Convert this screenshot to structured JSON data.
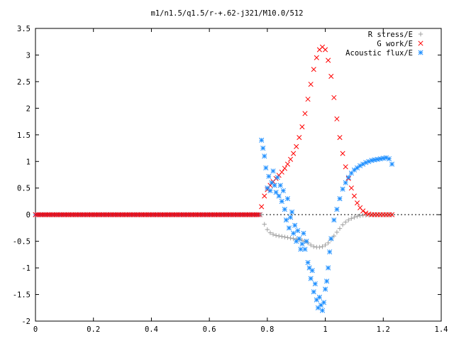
{
  "chart_data": {
    "type": "scatter",
    "title": "m1/n1.5/q1.5/r-+.62-j321/M10.0/512",
    "xlabel": "",
    "ylabel": "",
    "xlim": [
      0,
      1.4
    ],
    "ylim": [
      -2,
      3.5
    ],
    "xticks": [
      0,
      0.2,
      0.4,
      0.6,
      0.8,
      1,
      1.2,
      1.4
    ],
    "yticks": [
      -2,
      -1.5,
      -1,
      -0.5,
      0,
      0.5,
      1,
      1.5,
      2,
      2.5,
      3,
      3.5
    ],
    "legend_position": "top-right",
    "grid": false,
    "series": [
      {
        "name": "R stress/E",
        "marker": "plus",
        "color": "#a0a0a0",
        "x": [
          0.78,
          0.79,
          0.8,
          0.81,
          0.82,
          0.83,
          0.84,
          0.85,
          0.86,
          0.87,
          0.88,
          0.89,
          0.9,
          0.91,
          0.92,
          0.93,
          0.94,
          0.95,
          0.96,
          0.97,
          0.98,
          0.99,
          1,
          1.01,
          1.02,
          1.03,
          1.04,
          1.05,
          1.06,
          1.07,
          1.08,
          1.09,
          1.1,
          1.11,
          1.12,
          1.13,
          1.14,
          1.15,
          1.16,
          1.17,
          1.18,
          1.19,
          1.2,
          1.21,
          1.22,
          1.23
        ],
        "y": [
          0,
          -0.18,
          -0.28,
          -0.34,
          -0.37,
          -0.39,
          -0.4,
          -0.41,
          -0.42,
          -0.43,
          -0.44,
          -0.45,
          -0.46,
          -0.47,
          -0.48,
          -0.5,
          -0.53,
          -0.57,
          -0.6,
          -0.61,
          -0.61,
          -0.6,
          -0.57,
          -0.53,
          -0.47,
          -0.4,
          -0.33,
          -0.26,
          -0.19,
          -0.14,
          -0.1,
          -0.07,
          -0.05,
          -0.03,
          -0.02,
          -0.01,
          -0.01,
          -0.005,
          0,
          0,
          0,
          0,
          0,
          0,
          0,
          0
        ]
      },
      {
        "name": "G work/E",
        "marker": "cross",
        "color": "#ff0000",
        "x": [
          0.78,
          0.79,
          0.8,
          0.81,
          0.82,
          0.83,
          0.84,
          0.85,
          0.86,
          0.87,
          0.88,
          0.89,
          0.9,
          0.91,
          0.92,
          0.93,
          0.94,
          0.95,
          0.96,
          0.97,
          0.98,
          0.99,
          1,
          1.01,
          1.02,
          1.03,
          1.04,
          1.05,
          1.06,
          1.07,
          1.08,
          1.09,
          1.1,
          1.11,
          1.12,
          1.13,
          1.14,
          1.15,
          1.16,
          1.17,
          1.18,
          1.19,
          1.2,
          1.21,
          1.22,
          1.23
        ],
        "y": [
          0.15,
          0.35,
          0.47,
          0.55,
          0.62,
          0.68,
          0.74,
          0.8,
          0.87,
          0.95,
          1.04,
          1.15,
          1.28,
          1.45,
          1.65,
          1.9,
          2.17,
          2.45,
          2.73,
          2.95,
          3.1,
          3.15,
          3.1,
          2.9,
          2.6,
          2.2,
          1.8,
          1.45,
          1.15,
          0.9,
          0.68,
          0.5,
          0.35,
          0.22,
          0.13,
          0.07,
          0.03,
          0.01,
          0,
          0,
          0,
          0,
          0,
          0,
          0,
          0
        ]
      },
      {
        "name": "Acoustic flux/E",
        "marker": "star",
        "color": "#1e8fff",
        "x": [
          0.78,
          0.785,
          0.79,
          0.795,
          0.8,
          0.805,
          0.81,
          0.815,
          0.82,
          0.825,
          0.83,
          0.835,
          0.84,
          0.845,
          0.85,
          0.855,
          0.86,
          0.865,
          0.87,
          0.875,
          0.88,
          0.885,
          0.89,
          0.895,
          0.9,
          0.905,
          0.91,
          0.915,
          0.92,
          0.925,
          0.93,
          0.935,
          0.94,
          0.945,
          0.95,
          0.955,
          0.96,
          0.965,
          0.97,
          0.975,
          0.98,
          0.985,
          0.99,
          0.995,
          1,
          1.005,
          1.01,
          1.015,
          1.02,
          1.03,
          1.04,
          1.05,
          1.06,
          1.07,
          1.08,
          1.09,
          1.1,
          1.11,
          1.12,
          1.13,
          1.14,
          1.15,
          1.16,
          1.17,
          1.18,
          1.19,
          1.2,
          1.21,
          1.22,
          1.23
        ],
        "y": [
          1.4,
          1.25,
          1.1,
          0.88,
          0.5,
          0.72,
          0.45,
          0.6,
          0.82,
          0.55,
          0.42,
          0.7,
          0.35,
          0.55,
          0.25,
          0.45,
          0.1,
          -0.1,
          0.3,
          -0.25,
          -0.05,
          0.05,
          -0.35,
          -0.2,
          -0.5,
          -0.3,
          -0.45,
          -0.65,
          -0.55,
          -0.35,
          -0.65,
          -0.5,
          -0.9,
          -1.0,
          -1.2,
          -1.05,
          -1.45,
          -1.3,
          -1.6,
          -1.75,
          -1.55,
          -1.7,
          -1.8,
          -1.65,
          -1.4,
          -1.25,
          -1.0,
          -0.7,
          -0.45,
          -0.1,
          0.1,
          0.3,
          0.48,
          0.6,
          0.7,
          0.78,
          0.84,
          0.88,
          0.92,
          0.95,
          0.98,
          1.0,
          1.02,
          1.03,
          1.04,
          1.05,
          1.06,
          1.07,
          1.05,
          0.95
        ]
      }
    ]
  }
}
